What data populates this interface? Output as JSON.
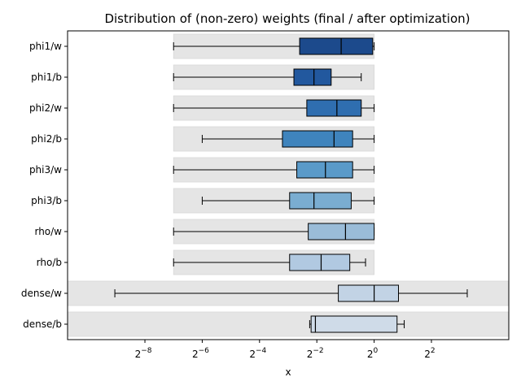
{
  "chart_data": {
    "type": "box",
    "title": "Distribution of (non-zero) weights (final / after optimization)",
    "xlabel": "x",
    "ylabel": "",
    "x_scale": "log2",
    "xlim_exp": [
      -10.7,
      4.7
    ],
    "x_ticks": [
      {
        "exp": -8,
        "label": "2",
        "sup": "−8"
      },
      {
        "exp": -6,
        "label": "2",
        "sup": "−6"
      },
      {
        "exp": -4,
        "label": "2",
        "sup": "−4"
      },
      {
        "exp": -2,
        "label": "2",
        "sup": "−2"
      },
      {
        "exp": 0,
        "label": "2",
        "sup": "0"
      },
      {
        "exp": 2,
        "label": "2",
        "sup": "2"
      }
    ],
    "grid": false,
    "series": [
      {
        "name": "phi1/w",
        "color": "#1c4a8c",
        "band_exp": [
          -7,
          0
        ],
        "whisker_exp": [
          -7,
          0
        ],
        "q1_exp": -2.6,
        "median_exp": -1.15,
        "q3_exp": -0.05
      },
      {
        "name": "phi1/b",
        "color": "#22589e",
        "band_exp": [
          -7,
          0
        ],
        "whisker_exp": [
          -7,
          -0.45
        ],
        "q1_exp": -2.8,
        "median_exp": -2.1,
        "q3_exp": -1.5
      },
      {
        "name": "phi2/w",
        "color": "#2f6eb0",
        "band_exp": [
          -7,
          0
        ],
        "whisker_exp": [
          -7,
          0
        ],
        "q1_exp": -2.35,
        "median_exp": -1.3,
        "q3_exp": -0.45
      },
      {
        "name": "phi2/b",
        "color": "#3f84bd",
        "band_exp": [
          -7,
          0
        ],
        "whisker_exp": [
          -6,
          0
        ],
        "q1_exp": -3.2,
        "median_exp": -1.4,
        "q3_exp": -0.75
      },
      {
        "name": "phi3/w",
        "color": "#5a9ac9",
        "band_exp": [
          -7,
          0
        ],
        "whisker_exp": [
          -7,
          0
        ],
        "q1_exp": -2.7,
        "median_exp": -1.7,
        "q3_exp": -0.75
      },
      {
        "name": "phi3/b",
        "color": "#7aadd1",
        "band_exp": [
          -7,
          0
        ],
        "whisker_exp": [
          -6,
          0
        ],
        "q1_exp": -2.95,
        "median_exp": -2.1,
        "q3_exp": -0.8
      },
      {
        "name": "rho/w",
        "color": "#9abcd8",
        "band_exp": [
          -7,
          0
        ],
        "whisker_exp": [
          -7,
          0
        ],
        "q1_exp": -2.3,
        "median_exp": -1.0,
        "q3_exp": 0
      },
      {
        "name": "rho/b",
        "color": "#b1c9e1",
        "band_exp": [
          -7,
          0
        ],
        "whisker_exp": [
          -7,
          -0.3
        ],
        "q1_exp": -2.95,
        "median_exp": -1.85,
        "q3_exp": -0.85
      },
      {
        "name": "dense/w",
        "color": "#c2d3e5",
        "band_exp": [
          -10.7,
          4.7
        ],
        "whisker_exp": [
          -9.05,
          3.25
        ],
        "q1_exp": -1.25,
        "median_exp": 0,
        "q3_exp": 0.85
      },
      {
        "name": "dense/b",
        "color": "#cfdbe8",
        "band_exp": [
          -10.7,
          4.7
        ],
        "whisker_exp": [
          -2.25,
          1.05
        ],
        "q1_exp": -2.2,
        "median_exp": -2.05,
        "q3_exp": 0.8
      }
    ]
  }
}
